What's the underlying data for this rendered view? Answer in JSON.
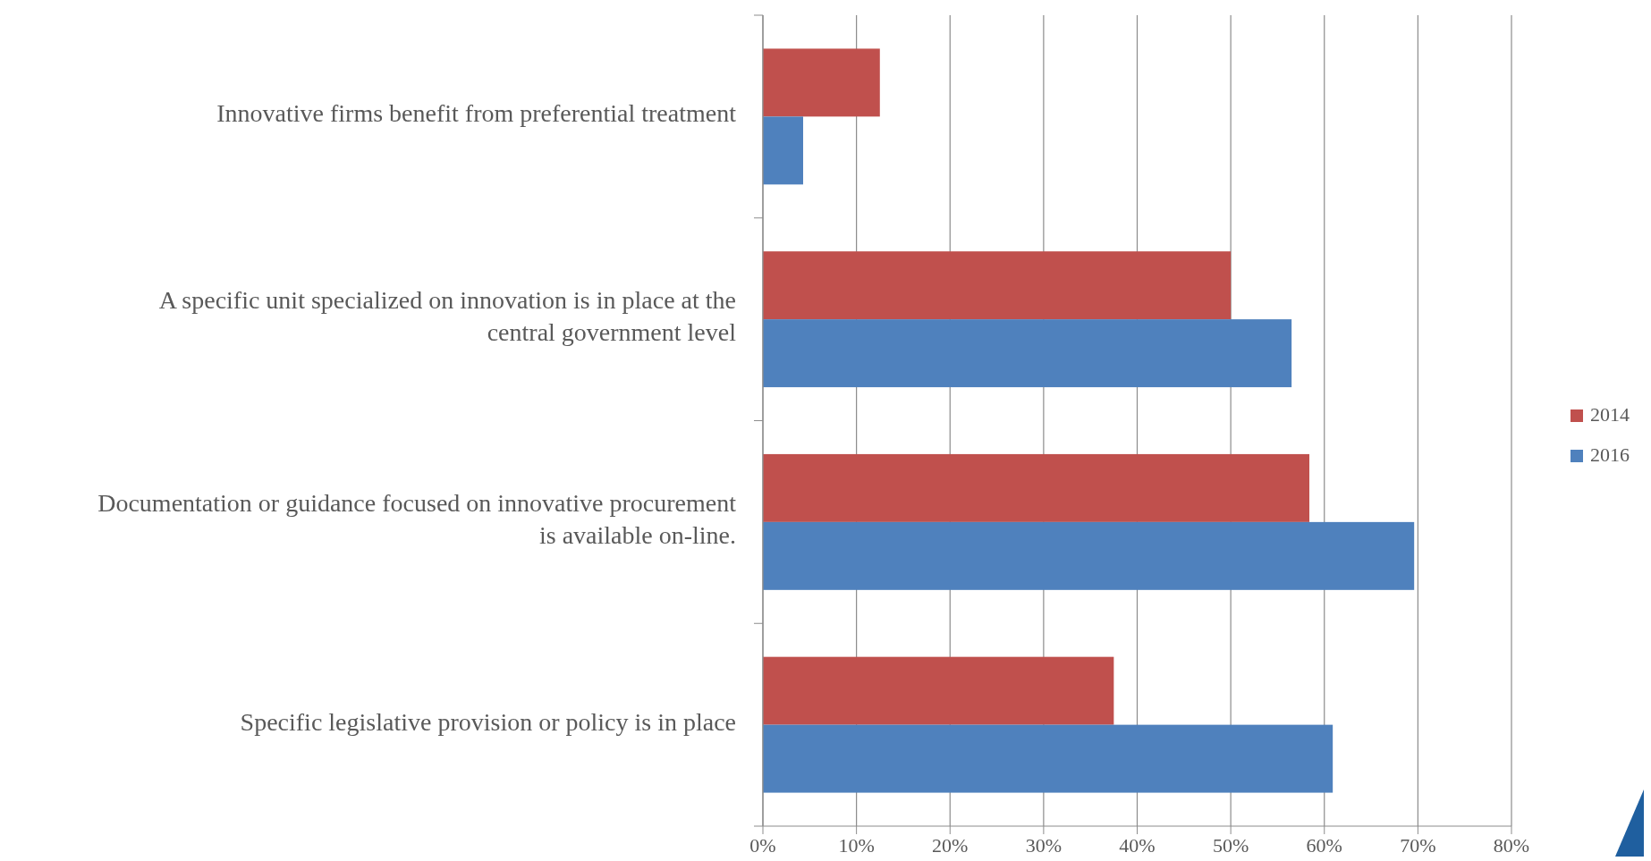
{
  "chart_data": {
    "type": "bar",
    "orientation": "horizontal",
    "categories": [
      "Innovative firms benefit from preferential treatment",
      "A specific unit specialized on innovation is in place at the central government level",
      "Documentation or guidance focused on innovative procurement is available on-line.",
      "Specific legislative provision or policy is in place"
    ],
    "series": [
      {
        "name": "2014",
        "color": "#c0504d",
        "values": [
          12.5,
          50,
          58.4,
          37.5
        ]
      },
      {
        "name": "2016",
        "color": "#4f81bd",
        "values": [
          4.3,
          56.5,
          69.6,
          60.9
        ]
      }
    ],
    "xlim": [
      0,
      80
    ],
    "xticks": [
      {
        "value": 0,
        "label": "0%"
      },
      {
        "value": 10,
        "label": "10%"
      },
      {
        "value": 20,
        "label": "20%"
      },
      {
        "value": 30,
        "label": "30%"
      },
      {
        "value": 40,
        "label": "40%"
      },
      {
        "value": 50,
        "label": "50%"
      },
      {
        "value": 60,
        "label": "60%"
      },
      {
        "value": 70,
        "label": "70%"
      },
      {
        "value": 80,
        "label": "80%"
      }
    ],
    "grid": "x",
    "legend": "right"
  }
}
